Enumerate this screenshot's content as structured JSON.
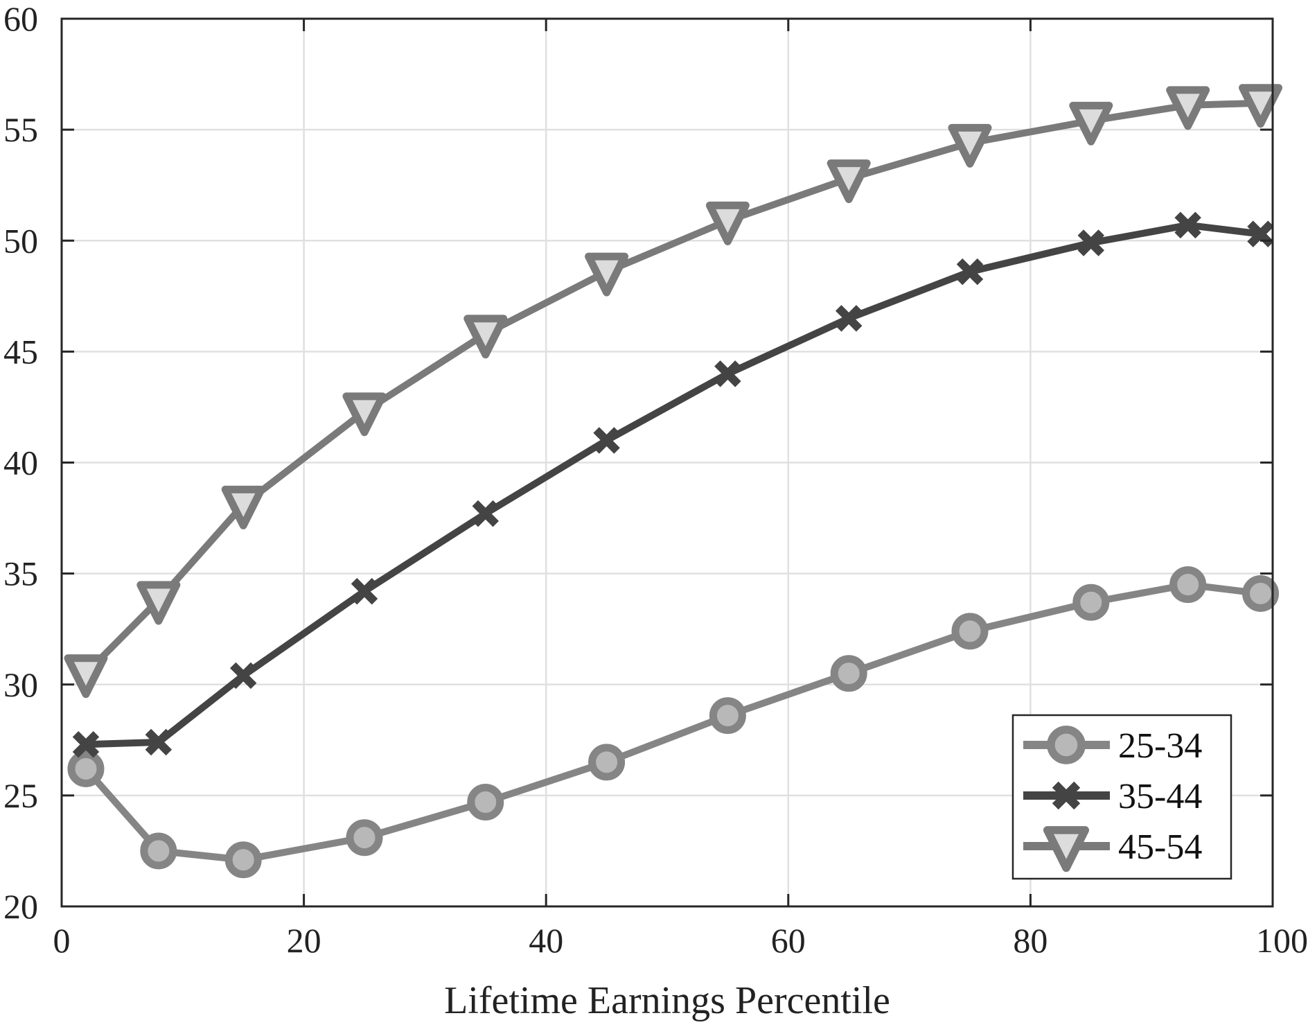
{
  "chart_data": {
    "type": "line",
    "title": "",
    "xlabel": "Lifetime Earnings Percentile",
    "ylabel": "",
    "xlim": [
      0,
      100
    ],
    "ylim": [
      20,
      60
    ],
    "xticks": [
      0,
      20,
      40,
      60,
      80,
      100
    ],
    "yticks": [
      20,
      25,
      30,
      35,
      40,
      45,
      50,
      55,
      60
    ],
    "grid": true,
    "legend_position": "lower right",
    "x": [
      2,
      8,
      15,
      25,
      35,
      45,
      55,
      65,
      75,
      85,
      93,
      99
    ],
    "series": [
      {
        "name": "25-34",
        "marker": "circle",
        "line_color": "#858585",
        "fill_color": "#b8b8b8",
        "values": [
          26.2,
          22.5,
          22.1,
          23.1,
          24.7,
          26.5,
          28.6,
          30.5,
          32.4,
          33.7,
          34.5,
          34.1
        ]
      },
      {
        "name": "35-44",
        "marker": "x",
        "line_color": "#444444",
        "fill_color": "#444444",
        "values": [
          27.3,
          27.4,
          30.4,
          34.2,
          37.7,
          41.0,
          44.0,
          46.5,
          48.6,
          49.9,
          50.7,
          50.3
        ]
      },
      {
        "name": "45-54",
        "marker": "triangle-down",
        "line_color": "#7a7a7a",
        "fill_color": "#dcdcdc",
        "values": [
          30.5,
          33.8,
          38.1,
          42.3,
          45.8,
          48.6,
          50.9,
          52.8,
          54.4,
          55.4,
          56.1,
          56.2
        ]
      }
    ]
  }
}
